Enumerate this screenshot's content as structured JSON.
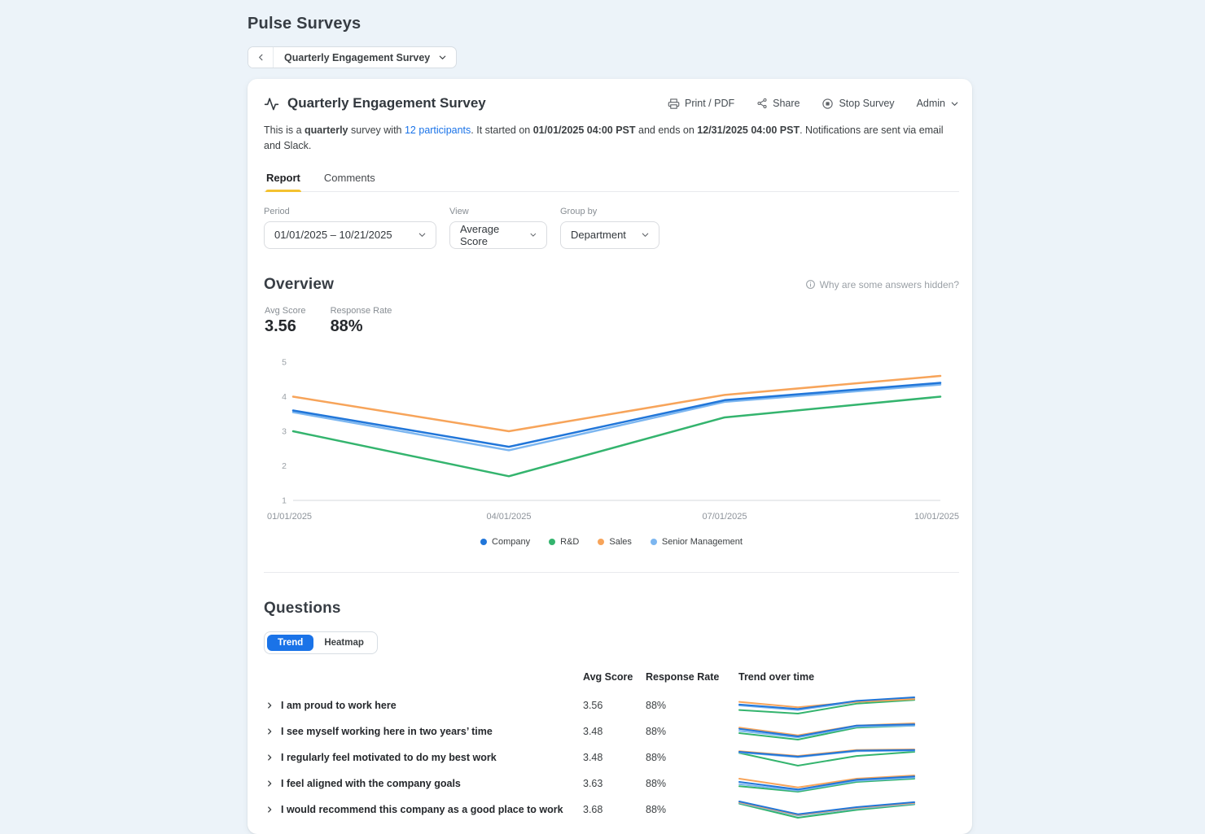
{
  "page": {
    "title": "Pulse Surveys"
  },
  "breadcrumb": {
    "survey_name": "Quarterly Engagement Survey"
  },
  "header": {
    "title": "Quarterly Engagement Survey",
    "actions": {
      "print": "Print / PDF",
      "share": "Share",
      "stop": "Stop Survey",
      "admin": "Admin"
    }
  },
  "description": {
    "segments": [
      {
        "text": "This is a ",
        "style": "normal"
      },
      {
        "text": "quarterly",
        "style": "bold"
      },
      {
        "text": " survey with ",
        "style": "normal"
      },
      {
        "text": "12 participants",
        "style": "link"
      },
      {
        "text": ". It started on ",
        "style": "normal"
      },
      {
        "text": "01/01/2025 04:00 PST",
        "style": "bold"
      },
      {
        "text": " and ends on ",
        "style": "normal"
      },
      {
        "text": "12/31/2025 04:00 PST",
        "style": "bold"
      },
      {
        "text": ". Notifications are sent via email and Slack.",
        "style": "normal"
      }
    ]
  },
  "tabs": [
    {
      "label": "Report",
      "active": true
    },
    {
      "label": "Comments",
      "active": false
    }
  ],
  "filters": {
    "period": {
      "label": "Period",
      "value": "01/01/2025  –  10/21/2025"
    },
    "view": {
      "label": "View",
      "value": "Average Score"
    },
    "group_by": {
      "label": "Group by",
      "value": "Department"
    }
  },
  "overview": {
    "heading": "Overview",
    "hidden_link": "Why are some answers hidden?",
    "stats": [
      {
        "label": "Avg Score",
        "value": "3.56"
      },
      {
        "label": "Response Rate",
        "value": "88%"
      }
    ]
  },
  "chart_data": {
    "type": "line",
    "title": "Overview — average score trend by department",
    "x": [
      "01/01/2025",
      "04/01/2025",
      "07/01/2025",
      "10/01/2025"
    ],
    "ylim": [
      1,
      5
    ],
    "yticks": [
      1,
      2,
      3,
      4,
      5
    ],
    "grid": false,
    "legend_position": "bottom",
    "series": [
      {
        "name": "Company",
        "color": "#2176d9",
        "values": [
          3.6,
          2.55,
          3.9,
          4.4
        ]
      },
      {
        "name": "R&D",
        "color": "#34b46e",
        "values": [
          3.0,
          1.7,
          3.4,
          4.0
        ]
      },
      {
        "name": "Sales",
        "color": "#f7a45a",
        "values": [
          4.0,
          3.0,
          4.05,
          4.6
        ]
      },
      {
        "name": "Senior Management",
        "color": "#7cb6f0",
        "values": [
          3.55,
          2.45,
          3.85,
          4.35
        ]
      }
    ]
  },
  "questions": {
    "heading": "Questions",
    "toggle": [
      {
        "label": "Trend",
        "active": true
      },
      {
        "label": "Heatmap",
        "active": false
      }
    ],
    "columns": [
      "Avg Score",
      "Response Rate",
      "Trend over time"
    ],
    "rows": [
      {
        "question": "I am proud to work here",
        "avg_score": "3.56",
        "response_rate": "88%",
        "spark": [
          {
            "name": "Company",
            "values": [
              3.85,
              3.6,
              4.05,
              4.25
            ]
          },
          {
            "name": "R&D",
            "values": [
              3.55,
              3.35,
              3.9,
              4.1
            ]
          },
          {
            "name": "Sales",
            "values": [
              4.0,
              3.7,
              4.0,
              4.15
            ]
          },
          {
            "name": "Senior Management",
            "values": [
              3.8,
              3.55,
              4.0,
              4.2
            ]
          }
        ]
      },
      {
        "question": "I see myself working here in two years’ time",
        "avg_score": "3.48",
        "response_rate": "88%",
        "spark": [
          {
            "name": "Company",
            "values": [
              3.8,
              3.45,
              3.95,
              4.0
            ]
          },
          {
            "name": "R&D",
            "values": [
              3.6,
              3.3,
              3.85,
              3.95
            ]
          },
          {
            "name": "Sales",
            "values": [
              3.85,
              3.5,
              3.95,
              4.05
            ]
          },
          {
            "name": "Senior Management",
            "values": [
              3.7,
              3.4,
              3.9,
              3.95
            ]
          }
        ]
      },
      {
        "question": "I regularly feel motivated to do my best work",
        "avg_score": "3.48",
        "response_rate": "88%",
        "spark": [
          {
            "name": "Company",
            "values": [
              3.85,
              3.45,
              3.95,
              4.0
            ]
          },
          {
            "name": "R&D",
            "values": [
              3.75,
              2.7,
              3.5,
              3.85
            ]
          },
          {
            "name": "Sales",
            "values": [
              3.9,
              3.5,
              4.0,
              4.05
            ]
          },
          {
            "name": "Senior Management",
            "values": [
              3.8,
              3.4,
              3.9,
              3.95
            ]
          }
        ]
      },
      {
        "question": "I feel aligned with the company goals",
        "avg_score": "3.63",
        "response_rate": "88%",
        "spark": [
          {
            "name": "Company",
            "values": [
              3.85,
              3.5,
              3.95,
              4.1
            ]
          },
          {
            "name": "R&D",
            "values": [
              3.65,
              3.4,
              3.85,
              4.0
            ]
          },
          {
            "name": "Sales",
            "values": [
              4.0,
              3.6,
              4.0,
              4.15
            ]
          },
          {
            "name": "Senior Management",
            "values": [
              3.75,
              3.45,
              3.9,
              4.05
            ]
          }
        ]
      },
      {
        "question": "I would recommend this company as a good place to work",
        "avg_score": "3.68",
        "response_rate": "88%",
        "spark": [
          {
            "name": "Company",
            "values": [
              4.0,
              3.1,
              3.6,
              3.95
            ]
          },
          {
            "name": "R&D",
            "values": [
              3.85,
              2.85,
              3.4,
              3.8
            ]
          },
          {
            "name": "Sales",
            "values": [
              3.95,
              3.05,
              3.55,
              3.9
            ]
          },
          {
            "name": "Senior Management",
            "values": [
              3.9,
              3.0,
              3.5,
              3.85
            ]
          }
        ]
      }
    ]
  },
  "colors": {
    "page_bg": "#ecf3f9",
    "card_bg": "#ffffff",
    "accent_blue": "#1a73e8",
    "tab_underline": "#f4c230",
    "axis_text": "#9aa0a6",
    "muted_text": "#878d93"
  }
}
